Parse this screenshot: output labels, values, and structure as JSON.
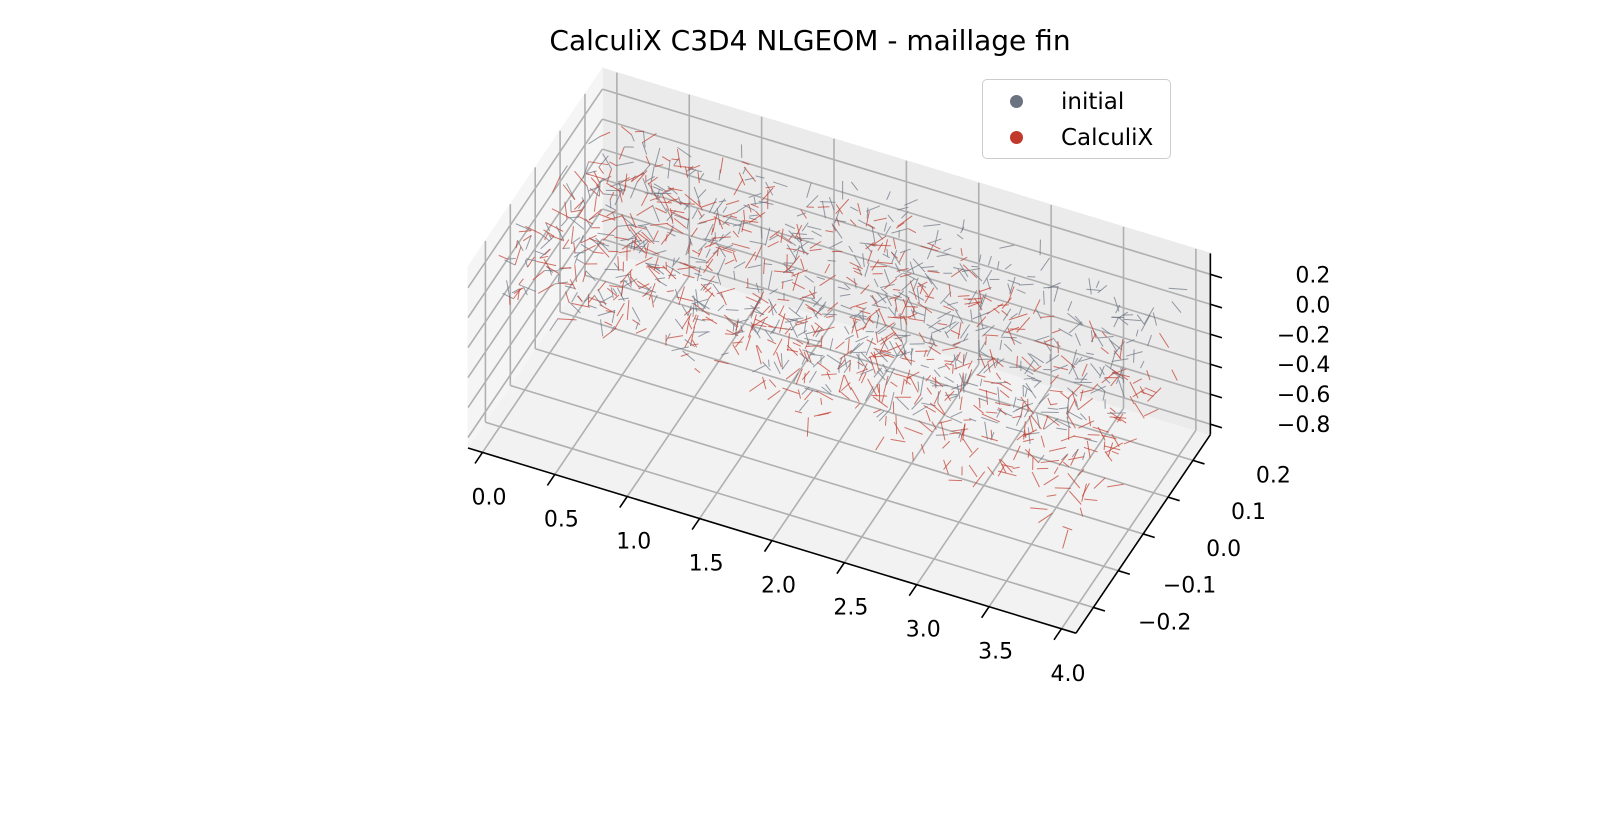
{
  "chart_data": {
    "type": "scatter",
    "projection": "3d",
    "title": "CalculiX C3D4 NLGEOM - maillage fin",
    "legend_position": "upper-right",
    "grid": true,
    "x_ticks": [
      "0.0",
      "0.5",
      "1.0",
      "1.5",
      "2.0",
      "2.5",
      "3.0",
      "3.5",
      "4.0"
    ],
    "y_ticks": [
      "−0.2",
      "−0.1",
      "0.0",
      "0.1",
      "0.2"
    ],
    "z_ticks": [
      "−0.8",
      "−0.6",
      "−0.4",
      "−0.2",
      "0.0",
      "0.2"
    ],
    "xlim": [
      -0.1,
      4.1
    ],
    "ylim": [
      -0.27,
      0.27
    ],
    "zlim": [
      -0.87,
      0.34
    ],
    "series": [
      {
        "name": "initial",
        "color": "#6b7280",
        "marker": "line-segment",
        "x_range": [
          0,
          4
        ],
        "y_range": [
          -0.2,
          0.2
        ],
        "z_range": [
          -0.1,
          0.3
        ]
      },
      {
        "name": "CalculiX",
        "color": "#c0392b",
        "marker": "line-segment",
        "x_range": [
          0,
          4
        ],
        "y_range": [
          -0.2,
          0.2
        ],
        "z_range": [
          -0.55,
          0.3
        ],
        "tip_deflection": -0.55
      }
    ]
  }
}
